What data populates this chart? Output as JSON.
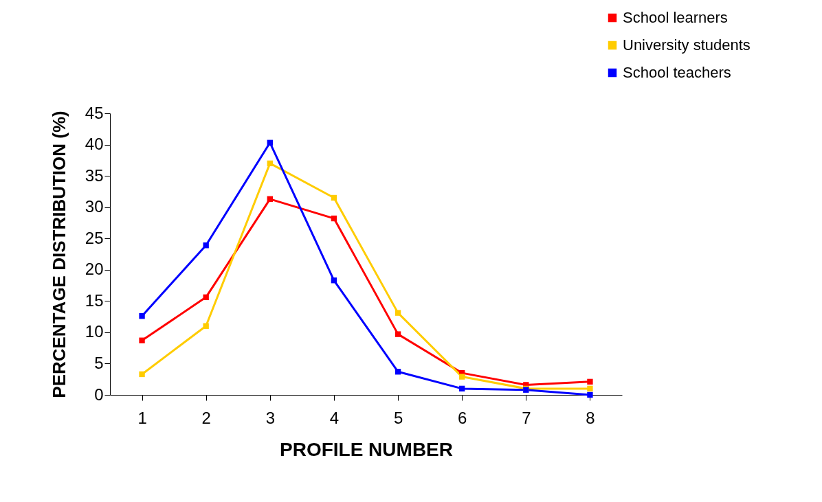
{
  "chart_data": {
    "type": "line",
    "xlabel": "PROFILE NUMBER",
    "ylabel": "PERCENTAGE DISTRIBUTION (%)",
    "categories": [
      "1",
      "2",
      "3",
      "4",
      "5",
      "6",
      "7",
      "8"
    ],
    "series": [
      {
        "name": "School learners",
        "color": "#ff0000",
        "values": [
          8.7,
          15.6,
          31.3,
          28.2,
          9.7,
          3.5,
          1.6,
          2.1
        ]
      },
      {
        "name": "University students",
        "color": "#ffcc00",
        "values": [
          3.3,
          11.0,
          37.0,
          31.5,
          13.1,
          2.9,
          1.0,
          1.0
        ]
      },
      {
        "name": "School teachers",
        "color": "#0000ff",
        "values": [
          12.6,
          23.9,
          40.3,
          18.3,
          3.7,
          1.0,
          0.8,
          0.0
        ]
      }
    ],
    "ylim": [
      0,
      45
    ],
    "yticks": [
      0,
      5,
      10,
      15,
      20,
      25,
      30,
      35,
      40,
      45
    ],
    "grid": false,
    "legend": "top right",
    "marker": "square",
    "line_style": "solid"
  }
}
